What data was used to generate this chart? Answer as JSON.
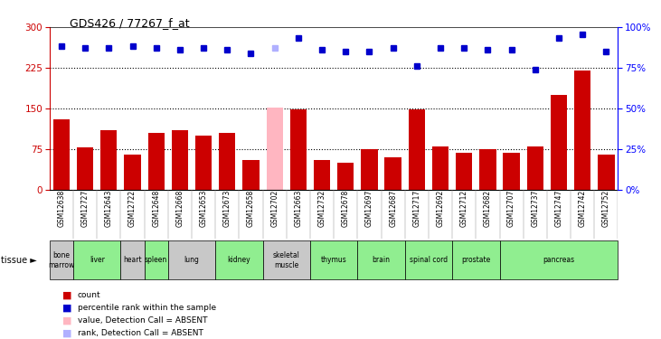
{
  "title": "GDS426 / 77267_f_at",
  "samples": [
    "GSM12638",
    "GSM12727",
    "GSM12643",
    "GSM12722",
    "GSM12648",
    "GSM12668",
    "GSM12653",
    "GSM12673",
    "GSM12658",
    "GSM12702",
    "GSM12663",
    "GSM12732",
    "GSM12678",
    "GSM12697",
    "GSM12687",
    "GSM12717",
    "GSM12692",
    "GSM12712",
    "GSM12682",
    "GSM12707",
    "GSM12737",
    "GSM12747",
    "GSM12742",
    "GSM12752"
  ],
  "bar_values": [
    130,
    78,
    110,
    65,
    105,
    110,
    100,
    105,
    55,
    152,
    148,
    55,
    50,
    75,
    60,
    148,
    80,
    68,
    75,
    68,
    80,
    175,
    220,
    65
  ],
  "absent_bar_idx": [
    9
  ],
  "rank_values": [
    265,
    262,
    262,
    265,
    262,
    258,
    262,
    258,
    252,
    262,
    280,
    258,
    255,
    255,
    262,
    228,
    262,
    262,
    258,
    258,
    222,
    280,
    286,
    255
  ],
  "absent_rank_idx": [
    9
  ],
  "tissue_groups": [
    {
      "label": "bone\nmarrow",
      "start": 0,
      "end": 0,
      "color": "#c8c8c8"
    },
    {
      "label": "liver",
      "start": 1,
      "end": 2,
      "color": "#90ee90"
    },
    {
      "label": "heart",
      "start": 3,
      "end": 3,
      "color": "#c8c8c8"
    },
    {
      "label": "spleen",
      "start": 4,
      "end": 4,
      "color": "#90ee90"
    },
    {
      "label": "lung",
      "start": 5,
      "end": 6,
      "color": "#c8c8c8"
    },
    {
      "label": "kidney",
      "start": 7,
      "end": 8,
      "color": "#90ee90"
    },
    {
      "label": "skeletal\nmuscle",
      "start": 9,
      "end": 10,
      "color": "#c8c8c8"
    },
    {
      "label": "thymus",
      "start": 11,
      "end": 12,
      "color": "#90ee90"
    },
    {
      "label": "brain",
      "start": 13,
      "end": 14,
      "color": "#90ee90"
    },
    {
      "label": "spinal cord",
      "start": 15,
      "end": 16,
      "color": "#90ee90"
    },
    {
      "label": "prostate",
      "start": 17,
      "end": 18,
      "color": "#90ee90"
    },
    {
      "label": "pancreas",
      "start": 19,
      "end": 23,
      "color": "#90ee90"
    }
  ],
  "bar_color_normal": "#cc0000",
  "bar_color_absent": "#ffb6c1",
  "rank_color_normal": "#0000cc",
  "rank_color_absent": "#b0b0ff",
  "left_yticks": [
    0,
    75,
    150,
    225,
    300
  ],
  "right_yticks": [
    0,
    25,
    50,
    75,
    100
  ],
  "grid_lines": [
    75,
    150,
    225
  ],
  "left_ylim": [
    0,
    300
  ],
  "right_ylim": [
    0,
    100
  ]
}
